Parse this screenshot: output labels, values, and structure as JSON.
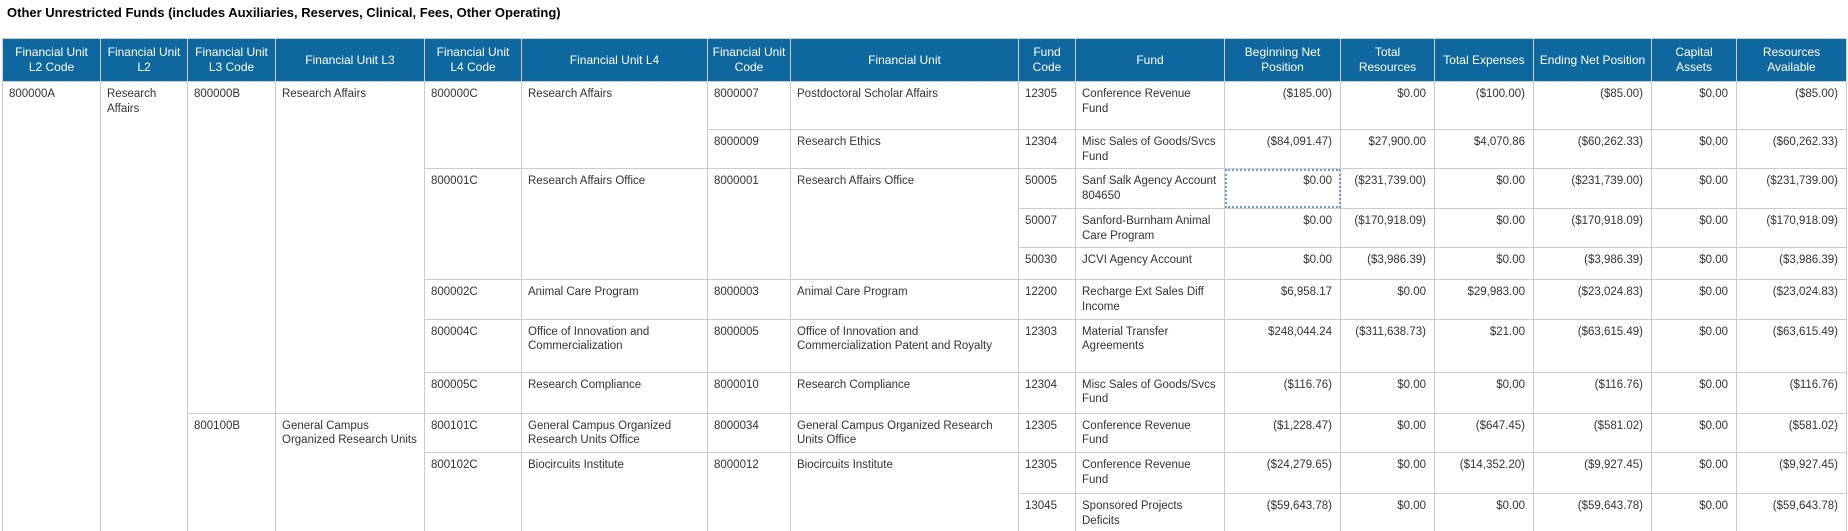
{
  "title": "Other Unrestricted Funds (includes Auxiliaries, Reserves, Clinical, Fees, Other Operating)",
  "colors": {
    "header_bg": "#0E679E",
    "grid_border": "#CCCCCC",
    "selection_border": "#6F9BD1",
    "header_text": "#FFFFFF",
    "body_text": "#333333",
    "title_text": "#000000"
  },
  "table": {
    "keys": [
      "l2-code",
      "l2",
      "l3-code",
      "l3",
      "l4-code",
      "l4",
      "fu-code",
      "fu",
      "fund-code",
      "fund",
      "beg-net-pos",
      "total-res",
      "total-exp",
      "end-net-pos",
      "cap-assets",
      "res-avail"
    ],
    "columns": [
      "Financial Unit L2 Code",
      "Financial Unit L2",
      "Financial Unit L3 Code",
      "Financial Unit L3",
      "Financial Unit L4 Code",
      "Financial Unit L4",
      "Financial Unit Code",
      "Financial Unit",
      "Fund Code",
      "Fund",
      "Beginning Net Position",
      "Total Resources",
      "Total Expenses",
      "Ending Net Position",
      "Capital Assets",
      "Resources Available"
    ],
    "selected_cell": {
      "row": 3,
      "column": "Beginning Net Position",
      "value": "$0.00"
    },
    "rows": [
      [
        {
          "k": "l2-code",
          "t": "800000A",
          "rs": 12,
          "c": "code"
        },
        {
          "k": "l2",
          "t": "Research Affairs",
          "rs": 12,
          "c": "txt"
        },
        {
          "k": "l3-code",
          "t": "800000B",
          "rs": 8,
          "c": "code"
        },
        {
          "k": "l3",
          "t": "Research Affairs",
          "rs": 8,
          "c": "txt"
        },
        {
          "k": "l4-code",
          "t": "800000C",
          "rs": 2,
          "c": "code"
        },
        {
          "k": "l4",
          "t": "Research Affairs",
          "rs": 2,
          "c": "txt"
        },
        {
          "k": "fu-code",
          "t": "8000007",
          "c": "code"
        },
        {
          "k": "fu",
          "t": "Postdoctoral Scholar Affairs",
          "c": "txt"
        },
        {
          "k": "fund-code",
          "t": "12305",
          "c": "code"
        },
        {
          "k": "fund",
          "t": "Conference Revenue Fund",
          "c": "txt"
        },
        {
          "k": "beg-net-pos",
          "t": "($185.00)",
          "c": "num"
        },
        {
          "k": "total-res",
          "t": "$0.00",
          "c": "num"
        },
        {
          "k": "total-exp",
          "t": "($100.00)",
          "c": "num"
        },
        {
          "k": "end-net-pos",
          "t": "($85.00)",
          "c": "num"
        },
        {
          "k": "cap-assets",
          "t": "$0.00",
          "c": "num"
        },
        {
          "k": "res-avail",
          "t": "($85.00)",
          "c": "num"
        }
      ],
      [
        {
          "k": "fu-code",
          "t": "8000009",
          "c": "code"
        },
        {
          "k": "fu",
          "t": "Research Ethics",
          "c": "txt"
        },
        {
          "k": "fund-code",
          "t": "12304",
          "c": "code"
        },
        {
          "k": "fund",
          "t": "Misc Sales of Goods/Svcs Fund",
          "c": "txt"
        },
        {
          "k": "beg-net-pos",
          "t": "($84,091.47)",
          "c": "num"
        },
        {
          "k": "total-res",
          "t": "$27,900.00",
          "c": "num"
        },
        {
          "k": "total-exp",
          "t": "$4,070.86",
          "c": "num"
        },
        {
          "k": "end-net-pos",
          "t": "($60,262.33)",
          "c": "num"
        },
        {
          "k": "cap-assets",
          "t": "$0.00",
          "c": "num"
        },
        {
          "k": "res-avail",
          "t": "($60,262.33)",
          "c": "num"
        }
      ],
      [
        {
          "k": "l4-code",
          "t": "800001C",
          "rs": 3,
          "c": "code"
        },
        {
          "k": "l4",
          "t": "Research Affairs Office",
          "rs": 3,
          "c": "txt"
        },
        {
          "k": "fu-code",
          "t": "8000001",
          "rs": 3,
          "c": "code"
        },
        {
          "k": "fu",
          "t": "Research Affairs Office",
          "rs": 3,
          "c": "txt"
        },
        {
          "k": "fund-code",
          "t": "50005",
          "c": "code"
        },
        {
          "k": "fund",
          "t": "Sanf Salk Agency Account 804650",
          "c": "txt"
        },
        {
          "k": "beg-net-pos",
          "t": "$0.00",
          "c": "num",
          "sel": true
        },
        {
          "k": "total-res",
          "t": "($231,739.00)",
          "c": "num"
        },
        {
          "k": "total-exp",
          "t": "$0.00",
          "c": "num"
        },
        {
          "k": "end-net-pos",
          "t": "($231,739.00)",
          "c": "num"
        },
        {
          "k": "cap-assets",
          "t": "$0.00",
          "c": "num"
        },
        {
          "k": "res-avail",
          "t": "($231,739.00)",
          "c": "num"
        }
      ],
      [
        {
          "k": "fund-code",
          "t": "50007",
          "c": "code"
        },
        {
          "k": "fund",
          "t": "Sanford-Burnham Animal Care Program",
          "c": "txt"
        },
        {
          "k": "beg-net-pos",
          "t": "$0.00",
          "c": "num"
        },
        {
          "k": "total-res",
          "t": "($170,918.09)",
          "c": "num"
        },
        {
          "k": "total-exp",
          "t": "$0.00",
          "c": "num"
        },
        {
          "k": "end-net-pos",
          "t": "($170,918.09)",
          "c": "num"
        },
        {
          "k": "cap-assets",
          "t": "$0.00",
          "c": "num"
        },
        {
          "k": "res-avail",
          "t": "($170,918.09)",
          "c": "num"
        }
      ],
      [
        {
          "k": "fund-code",
          "t": "50030",
          "c": "code"
        },
        {
          "k": "fund",
          "t": "JCVI Agency Account",
          "c": "txt"
        },
        {
          "k": "beg-net-pos",
          "t": "$0.00",
          "c": "num"
        },
        {
          "k": "total-res",
          "t": "($3,986.39)",
          "c": "num"
        },
        {
          "k": "total-exp",
          "t": "$0.00",
          "c": "num"
        },
        {
          "k": "end-net-pos",
          "t": "($3,986.39)",
          "c": "num"
        },
        {
          "k": "cap-assets",
          "t": "$0.00",
          "c": "num"
        },
        {
          "k": "res-avail",
          "t": "($3,986.39)",
          "c": "num"
        }
      ],
      [
        {
          "k": "l4-code",
          "t": "800002C",
          "c": "code"
        },
        {
          "k": "l4",
          "t": "Animal Care Program",
          "c": "txt"
        },
        {
          "k": "fu-code",
          "t": "8000003",
          "c": "code"
        },
        {
          "k": "fu",
          "t": "Animal Care Program",
          "c": "txt"
        },
        {
          "k": "fund-code",
          "t": "12200",
          "c": "code"
        },
        {
          "k": "fund",
          "t": "Recharge Ext Sales Diff Income",
          "c": "txt"
        },
        {
          "k": "beg-net-pos",
          "t": "$6,958.17",
          "c": "num"
        },
        {
          "k": "total-res",
          "t": "$0.00",
          "c": "num"
        },
        {
          "k": "total-exp",
          "t": "$29,983.00",
          "c": "num"
        },
        {
          "k": "end-net-pos",
          "t": "($23,024.83)",
          "c": "num"
        },
        {
          "k": "cap-assets",
          "t": "$0.00",
          "c": "num"
        },
        {
          "k": "res-avail",
          "t": "($23,024.83)",
          "c": "num"
        }
      ],
      [
        {
          "k": "l4-code",
          "t": "800004C",
          "c": "code"
        },
        {
          "k": "l4",
          "t": "Office of Innovation and Commercialization",
          "c": "txt"
        },
        {
          "k": "fu-code",
          "t": "8000005",
          "c": "code"
        },
        {
          "k": "fu",
          "t": "Office of Innovation and Commercialization Patent and Royalty",
          "c": "txt"
        },
        {
          "k": "fund-code",
          "t": "12303",
          "c": "code"
        },
        {
          "k": "fund",
          "t": "Material Transfer Agreements",
          "c": "txt"
        },
        {
          "k": "beg-net-pos",
          "t": "$248,044.24",
          "c": "num"
        },
        {
          "k": "total-res",
          "t": "($311,638.73)",
          "c": "num"
        },
        {
          "k": "total-exp",
          "t": "$21.00",
          "c": "num"
        },
        {
          "k": "end-net-pos",
          "t": "($63,615.49)",
          "c": "num"
        },
        {
          "k": "cap-assets",
          "t": "$0.00",
          "c": "num"
        },
        {
          "k": "res-avail",
          "t": "($63,615.49)",
          "c": "num"
        }
      ],
      [
        {
          "k": "l4-code",
          "t": "800005C",
          "c": "code"
        },
        {
          "k": "l4",
          "t": "Research Compliance",
          "c": "txt"
        },
        {
          "k": "fu-code",
          "t": "8000010",
          "c": "code"
        },
        {
          "k": "fu",
          "t": "Research Compliance",
          "c": "txt"
        },
        {
          "k": "fund-code",
          "t": "12304",
          "c": "code"
        },
        {
          "k": "fund",
          "t": "Misc Sales of Goods/Svcs Fund",
          "c": "txt"
        },
        {
          "k": "beg-net-pos",
          "t": "($116.76)",
          "c": "num"
        },
        {
          "k": "total-res",
          "t": "$0.00",
          "c": "num"
        },
        {
          "k": "total-exp",
          "t": "$0.00",
          "c": "num"
        },
        {
          "k": "end-net-pos",
          "t": "($116.76)",
          "c": "num"
        },
        {
          "k": "cap-assets",
          "t": "$0.00",
          "c": "num"
        },
        {
          "k": "res-avail",
          "t": "($116.76)",
          "c": "num"
        }
      ],
      [
        {
          "k": "l3-code",
          "t": "800100B",
          "rs": 4,
          "c": "code"
        },
        {
          "k": "l3",
          "t": "General Campus Organized Research Units",
          "rs": 4,
          "c": "txt"
        },
        {
          "k": "l4-code",
          "t": "800101C",
          "c": "code"
        },
        {
          "k": "l4",
          "t": "General Campus Organized Research Units Office",
          "c": "txt"
        },
        {
          "k": "fu-code",
          "t": "8000034",
          "c": "code"
        },
        {
          "k": "fu",
          "t": "General Campus Organized Research Units Office",
          "c": "txt"
        },
        {
          "k": "fund-code",
          "t": "12305",
          "c": "code"
        },
        {
          "k": "fund",
          "t": "Conference Revenue Fund",
          "c": "txt"
        },
        {
          "k": "beg-net-pos",
          "t": "($1,228.47)",
          "c": "num"
        },
        {
          "k": "total-res",
          "t": "$0.00",
          "c": "num"
        },
        {
          "k": "total-exp",
          "t": "($647.45)",
          "c": "num"
        },
        {
          "k": "end-net-pos",
          "t": "($581.02)",
          "c": "num"
        },
        {
          "k": "cap-assets",
          "t": "$0.00",
          "c": "num"
        },
        {
          "k": "res-avail",
          "t": "($581.02)",
          "c": "num"
        }
      ],
      [
        {
          "k": "l4-code",
          "t": "800102C",
          "rs": 2,
          "c": "code"
        },
        {
          "k": "l4",
          "t": "Biocircuits Institute",
          "rs": 2,
          "c": "txt"
        },
        {
          "k": "fu-code",
          "t": "8000012",
          "rs": 2,
          "c": "code"
        },
        {
          "k": "fu",
          "t": "Biocircuits Institute",
          "rs": 2,
          "c": "txt"
        },
        {
          "k": "fund-code",
          "t": "12305",
          "c": "code"
        },
        {
          "k": "fund",
          "t": "Conference Revenue Fund",
          "c": "txt"
        },
        {
          "k": "beg-net-pos",
          "t": "($24,279.65)",
          "c": "num"
        },
        {
          "k": "total-res",
          "t": "$0.00",
          "c": "num"
        },
        {
          "k": "total-exp",
          "t": "($14,352.20)",
          "c": "num"
        },
        {
          "k": "end-net-pos",
          "t": "($9,927.45)",
          "c": "num"
        },
        {
          "k": "cap-assets",
          "t": "$0.00",
          "c": "num"
        },
        {
          "k": "res-avail",
          "t": "($9,927.45)",
          "c": "num"
        }
      ],
      [
        {
          "k": "fund-code",
          "t": "13045",
          "c": "code"
        },
        {
          "k": "fund",
          "t": "Sponsored Projects Deficits",
          "c": "txt"
        },
        {
          "k": "beg-net-pos",
          "t": "($59,643.78)",
          "c": "num"
        },
        {
          "k": "total-res",
          "t": "$0.00",
          "c": "num"
        },
        {
          "k": "total-exp",
          "t": "$0.00",
          "c": "num"
        },
        {
          "k": "end-net-pos",
          "t": "($59,643.78)",
          "c": "num"
        },
        {
          "k": "cap-assets",
          "t": "$0.00",
          "c": "num"
        },
        {
          "k": "res-avail",
          "t": "($59,643.78)",
          "c": "num"
        }
      ],
      [
        {
          "k": "l4-code",
          "t": "",
          "c": "ph"
        },
        {
          "k": "l4",
          "t": "",
          "c": "ph"
        },
        {
          "k": "fu-code",
          "t": "",
          "c": "ph"
        },
        {
          "k": "fu",
          "t": "",
          "c": "ph"
        },
        {
          "k": "fund-code",
          "t": "",
          "c": "ph"
        },
        {
          "k": "fund",
          "t": "",
          "c": "ph"
        },
        {
          "k": "beg-net-pos",
          "t": "",
          "c": "ph"
        },
        {
          "k": "total-res",
          "t": "",
          "c": "ph"
        },
        {
          "k": "total-exp",
          "t": "",
          "c": "ph"
        },
        {
          "k": "end-net-pos",
          "t": "",
          "c": "ph"
        },
        {
          "k": "cap-assets",
          "t": "",
          "c": "ph"
        },
        {
          "k": "res-avail",
          "t": "",
          "c": "ph"
        }
      ]
    ]
  }
}
